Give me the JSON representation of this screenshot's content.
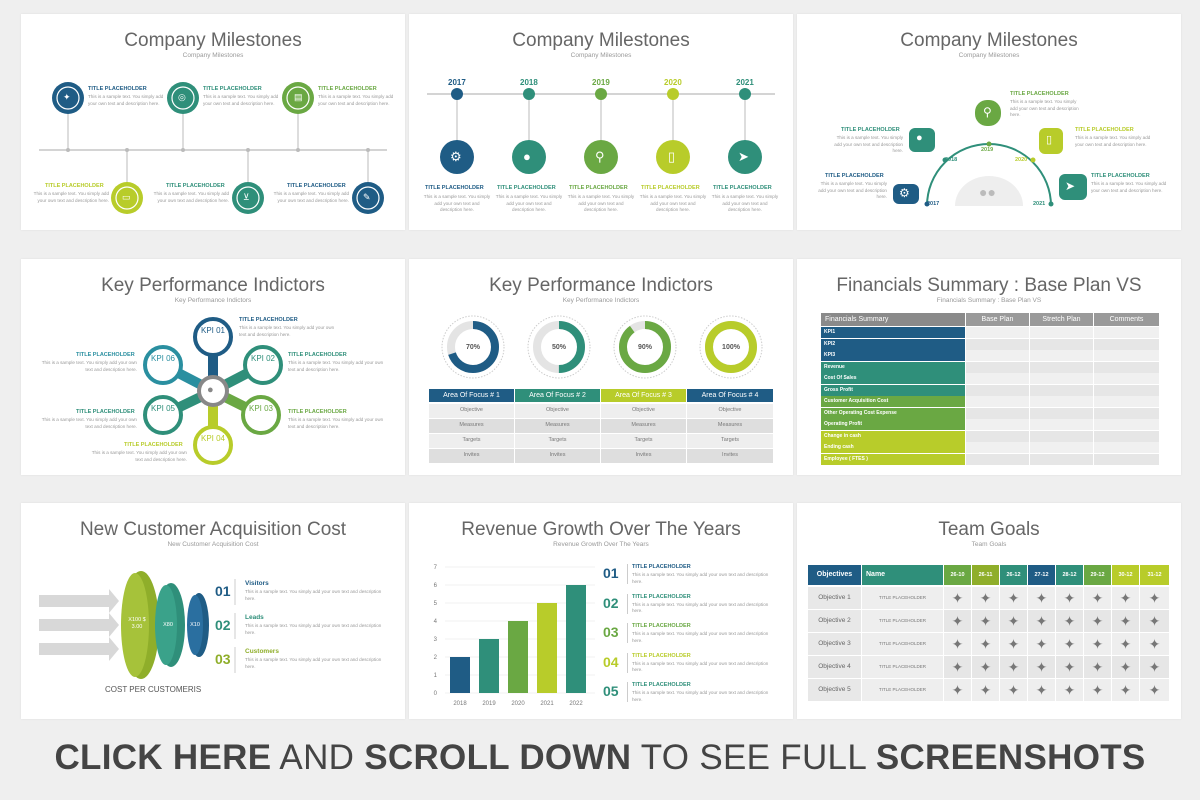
{
  "colors": {
    "navy": "#1f5c85",
    "teal": "#2f8f7a",
    "green": "#6aa843",
    "lime": "#b8cc2a",
    "grey": "#9a9a9a"
  },
  "placeholder": {
    "title": "TITLE PLACEHOLDER",
    "text": "This is a sample text. You simply add your own text and description here."
  },
  "slides": {
    "s1": {
      "title": "Company Milestones",
      "subtitle": "Company Milestones",
      "icons": [
        "megaphone-icon",
        "globe-icon",
        "clipboard-icon",
        "monitor-icon",
        "cart-icon",
        "edit-icon"
      ]
    },
    "s2": {
      "title": "Company Milestones",
      "subtitle": "Company Milestones",
      "years": [
        "2017",
        "2018",
        "2019",
        "2020",
        "2021"
      ],
      "icons": [
        "gear-icon",
        "user-icon",
        "search-icon",
        "phone-icon",
        "send-icon"
      ]
    },
    "s3": {
      "title": "Company Milestones",
      "subtitle": "Company Milestones",
      "years": [
        "2017",
        "2018",
        "2019",
        "2020",
        "2021"
      ],
      "icons": [
        "gear-icon",
        "user-icon",
        "search-icon",
        "phone-icon",
        "send-icon",
        "group-icon"
      ]
    },
    "s4": {
      "title": "Key Performance Indictors",
      "subtitle": "Key Performance Indictors",
      "kpis": [
        "KPI 01",
        "KPI 02",
        "KPI 03",
        "KPI 04",
        "KPI 05",
        "KPI 06"
      ]
    },
    "s5": {
      "title": "Key Performance Indictors",
      "subtitle": "Key Performance Indictors",
      "gauges": [
        {
          "label": "70%",
          "value": 70
        },
        {
          "label": "50%",
          "value": 50
        },
        {
          "label": "90%",
          "value": 90
        },
        {
          "label": "100%",
          "value": 100
        }
      ],
      "headers": [
        "Area Of Focus # 1",
        "Area Of Focus # 2",
        "Area Of Focus # 3",
        "Area Of Focus # 4"
      ],
      "rows": [
        "Objective",
        "Measures",
        "Targets",
        "Invites"
      ]
    },
    "s6": {
      "title": "Financials Summary : Base Plan VS",
      "subtitle": "Financials Summary : Base Plan VS",
      "headers": [
        "Financials Summary",
        "Base Plan",
        "Stretch Plan",
        "Comments"
      ],
      "rows": [
        "KPI1",
        "KPI2",
        "KPI3",
        "Revenue",
        "Cost Of Sales",
        "Gross Profit",
        "Customer Acquisition Cost",
        "Other Operating Cost Expense",
        "Operating Profit",
        "Change in cash",
        "Ending cash",
        "Employee ( FTES )"
      ]
    },
    "s7": {
      "title": "New Customer Acquisition Cost",
      "subtitle": "New Customer Acquisition Cost",
      "discs": [
        "X100 $ 3.00",
        "X80",
        "X10"
      ],
      "caption": "COST PER CUSTOMERIS",
      "items": [
        {
          "num": "01",
          "label": "Visitors"
        },
        {
          "num": "02",
          "label": "Leads"
        },
        {
          "num": "03",
          "label": "Customers"
        }
      ]
    },
    "s8": {
      "title": "Revenue Growth Over The Years",
      "subtitle": "Revenue Growth Over The Years",
      "nums": [
        "01",
        "02",
        "03",
        "04",
        "05"
      ]
    },
    "s9": {
      "title": "Team Goals",
      "subtitle": "Team Goals",
      "headers": [
        "Objectives",
        "Name",
        "26-10",
        "26-11",
        "26-12",
        "27-12",
        "28-12",
        "29-12",
        "30-12",
        "31-12"
      ],
      "rows": [
        "Objective 1",
        "Objective 2",
        "Objective 3",
        "Objective 4",
        "Objective 5"
      ],
      "name": "TITLE PLACEHOLDER"
    }
  },
  "chart_data": {
    "type": "bar",
    "categories": [
      "2018",
      "2019",
      "2020",
      "2021",
      "2022"
    ],
    "values": [
      2,
      3,
      4,
      5,
      6
    ],
    "ylim": [
      0,
      7
    ],
    "yticks": [
      "0",
      "1",
      "2",
      "3",
      "4",
      "5",
      "6",
      "7"
    ],
    "colors": [
      "#1f5c85",
      "#2f8f7a",
      "#6aa843",
      "#b8cc2a",
      "#2f8f7a"
    ]
  },
  "footer": {
    "part1": "CLICK HERE",
    "part2": " AND ",
    "part3": "SCROLL DOWN",
    "part4": " TO SEE FULL ",
    "part5": "SCREENSHOTS"
  }
}
